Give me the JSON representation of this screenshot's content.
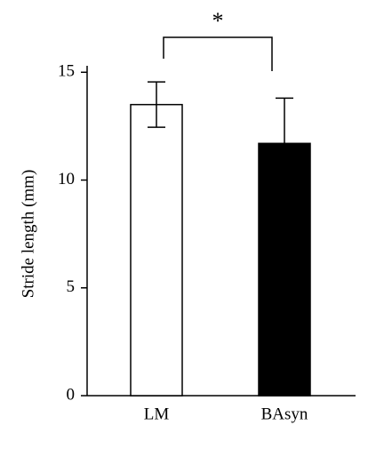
{
  "chart_data": {
    "type": "bar",
    "categories": [
      "LM",
      "BAsyn"
    ],
    "values": [
      13.5,
      11.7
    ],
    "errors": [
      1.05,
      2.1
    ],
    "colors": [
      "#ffffff",
      "#000000"
    ],
    "ylabel": "Stride length (mm)",
    "annotation": "*",
    "ylim": [
      0,
      15.3
    ],
    "yticks": [
      0,
      5,
      10,
      15
    ]
  }
}
